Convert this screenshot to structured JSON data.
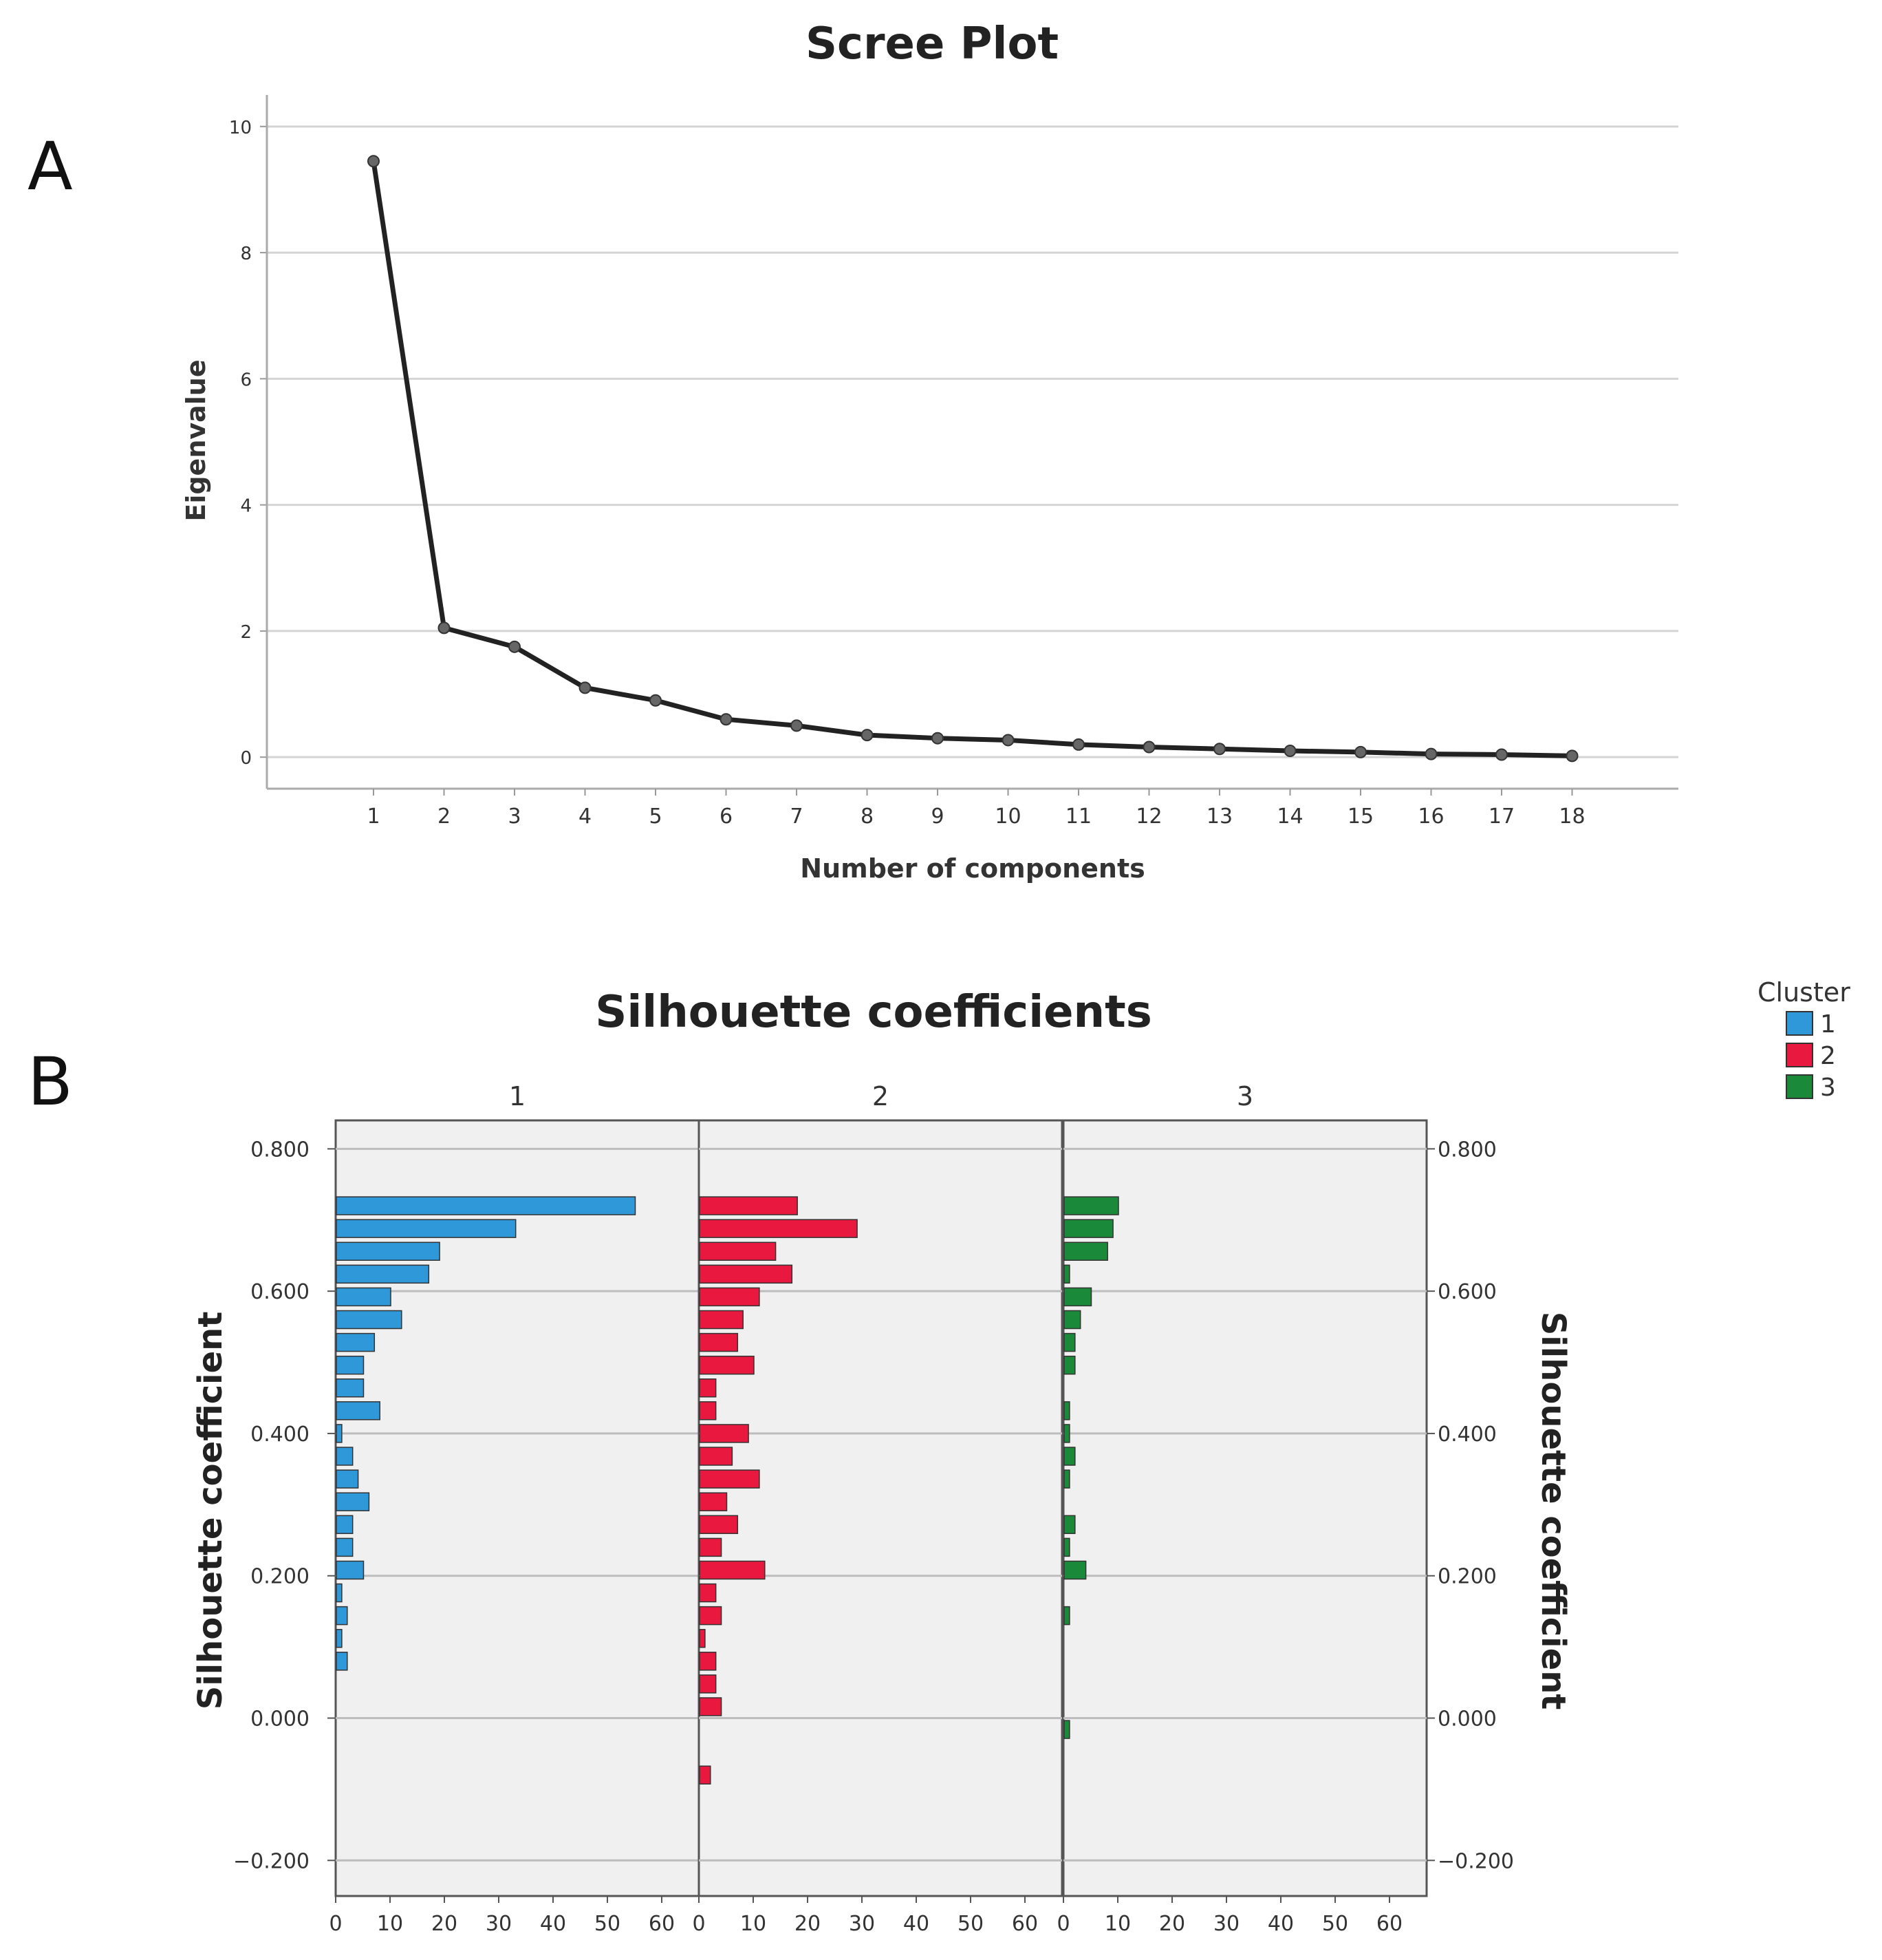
{
  "panels": {
    "a_letter": "A",
    "b_letter": "B"
  },
  "chart_data": [
    {
      "type": "line",
      "title": "Scree Plot",
      "xlabel": "Number of components",
      "ylabel": "Eigenvalue",
      "x": [
        1,
        2,
        3,
        4,
        5,
        6,
        7,
        8,
        9,
        10,
        11,
        12,
        13,
        14,
        15,
        16,
        17,
        18
      ],
      "series": [
        {
          "values": [
            9.45,
            2.05,
            1.75,
            1.1,
            0.9,
            0.6,
            0.5,
            0.35,
            0.3,
            0.27,
            0.2,
            0.16,
            0.13,
            0.1,
            0.08,
            0.05,
            0.04,
            0.02
          ]
        }
      ],
      "xticks": [
        "1",
        "2",
        "3",
        "4",
        "5",
        "6",
        "7",
        "8",
        "9",
        "10",
        "11",
        "12",
        "13",
        "14",
        "15",
        "16",
        "17",
        "18"
      ],
      "yticks": [
        "0",
        "2",
        "4",
        "6",
        "8",
        "10"
      ],
      "ylim": [
        -0.5,
        10.5
      ],
      "grid": "horizontal",
      "line_color": "#222222"
    },
    {
      "type": "bar",
      "orientation": "horizontal",
      "title": "Silhouette coefficients",
      "ylabel": "Silhouette coefficient",
      "ylabel_right": "Silhouette coefficient",
      "xlim": [
        0,
        67
      ],
      "ylim": [
        -0.25,
        0.84
      ],
      "bin_centers": [
        0.72,
        0.688,
        0.656,
        0.624,
        0.592,
        0.56,
        0.528,
        0.496,
        0.464,
        0.432,
        0.4,
        0.368,
        0.336,
        0.304,
        0.272,
        0.24,
        0.208,
        0.176,
        0.144,
        0.112,
        0.08,
        0.048,
        0.016,
        -0.016,
        -0.048,
        -0.08
      ],
      "yticks": [
        "0.800",
        "0.600",
        "0.400",
        "0.200",
        "0.000",
        "−0.200"
      ],
      "ytick_values": [
        0.8,
        0.6,
        0.4,
        0.2,
        0.0,
        -0.2
      ],
      "xticks": [
        "0",
        "10",
        "20",
        "30",
        "40",
        "50",
        "60"
      ],
      "xtick_values": [
        0,
        10,
        20,
        30,
        40,
        50,
        60
      ],
      "grid": "horizontal",
      "background": "#f0f0f0",
      "legend": {
        "title": "Cluster",
        "placement": "top-right",
        "entries": [
          "1",
          "2",
          "3"
        ]
      },
      "series": [
        {
          "name": "1",
          "color": "#2e98d8",
          "values": [
            55,
            33,
            19,
            17,
            10,
            12,
            7,
            5,
            5,
            8,
            1,
            3,
            4,
            6,
            3,
            3,
            5,
            1,
            2,
            1,
            2,
            0,
            0,
            0,
            0,
            0
          ]
        },
        {
          "name": "2",
          "color": "#e8183e",
          "values": [
            18,
            29,
            14,
            17,
            11,
            8,
            7,
            10,
            3,
            3,
            9,
            6,
            11,
            5,
            7,
            4,
            12,
            3,
            4,
            1,
            3,
            3,
            4,
            0,
            0,
            2
          ]
        },
        {
          "name": "3",
          "color": "#1a8a3a",
          "values": [
            10,
            9,
            8,
            1,
            5,
            3,
            2,
            2,
            0,
            1,
            1,
            2,
            1,
            0,
            2,
            1,
            4,
            0,
            1,
            0,
            0,
            0,
            0,
            1,
            0,
            0
          ]
        }
      ]
    }
  ]
}
